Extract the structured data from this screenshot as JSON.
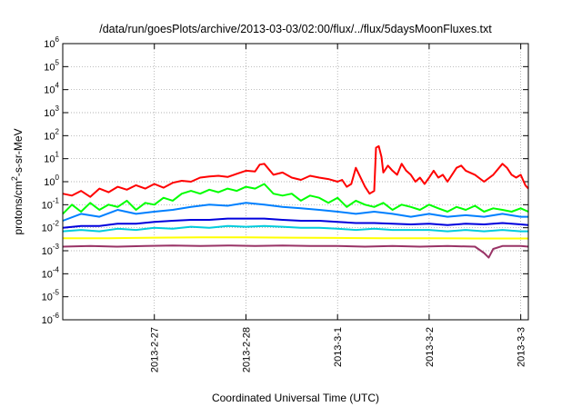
{
  "chart_data": {
    "type": "line",
    "title": "/data/run/goesPlots/archive/2013-03-03/02:00/flux/../flux/5daysMoonFluxes.txt",
    "xlabel": "Coordinated Universal Time (UTC)",
    "ylabel": {
      "base": "protons/cm",
      "sup": "2",
      "rest": "-s-sr-MeV"
    },
    "yscale": "log",
    "ylim": [
      -6,
      6
    ],
    "xlim": [
      "2013-02-26 00:00",
      "2013-03-03 02:00"
    ],
    "xlim_days": [
      0,
      5.083
    ],
    "xticks": [
      {
        "day": 1,
        "label": "2013-2-27"
      },
      {
        "day": 2,
        "label": "2013-2-28"
      },
      {
        "day": 3,
        "label": "2013-3-1"
      },
      {
        "day": 4,
        "label": "2013-3-2"
      },
      {
        "day": 5,
        "label": "2013-3-3"
      }
    ],
    "yticks": [
      {
        "exp": 6,
        "base": "10",
        "sup": "6"
      },
      {
        "exp": 5,
        "base": "10",
        "sup": "5"
      },
      {
        "exp": 4,
        "base": "10",
        "sup": "4"
      },
      {
        "exp": 3,
        "base": "10",
        "sup": "3"
      },
      {
        "exp": 2,
        "base": "10",
        "sup": "2"
      },
      {
        "exp": 1,
        "base": "10",
        "sup": "1"
      },
      {
        "exp": 0,
        "base": "10",
        "sup": "0"
      },
      {
        "exp": -1,
        "base": "10",
        "sup": "-1"
      },
      {
        "exp": -2,
        "base": "10",
        "sup": "-2"
      },
      {
        "exp": -3,
        "base": "10",
        "sup": "-3"
      },
      {
        "exp": -4,
        "base": "10",
        "sup": "-4"
      },
      {
        "exp": -5,
        "base": "10",
        "sup": "-5"
      },
      {
        "exp": -6,
        "base": "10",
        "sup": "-6"
      }
    ],
    "grid": true,
    "series": [
      {
        "color": "#ff0000",
        "x": [
          0,
          0.1,
          0.2,
          0.3,
          0.4,
          0.5,
          0.6,
          0.7,
          0.8,
          0.9,
          1.0,
          1.1,
          1.2,
          1.3,
          1.4,
          1.5,
          1.6,
          1.7,
          1.8,
          1.9,
          2.0,
          2.1,
          2.15,
          2.2,
          2.3,
          2.4,
          2.5,
          2.6,
          2.7,
          2.8,
          2.9,
          3.0,
          3.05,
          3.1,
          3.15,
          3.2,
          3.3,
          3.35,
          3.4,
          3.42,
          3.45,
          3.48,
          3.5,
          3.55,
          3.6,
          3.65,
          3.7,
          3.75,
          3.8,
          3.85,
          3.9,
          3.95,
          4.0,
          4.05,
          4.1,
          4.15,
          4.2,
          4.3,
          4.35,
          4.4,
          4.5,
          4.6,
          4.7,
          4.8,
          4.85,
          4.9,
          4.95,
          5.0,
          5.05,
          5.083
        ],
        "y": [
          0.3,
          0.25,
          0.4,
          0.22,
          0.5,
          0.35,
          0.6,
          0.45,
          0.7,
          0.5,
          0.8,
          0.55,
          0.9,
          1.1,
          1.0,
          1.5,
          1.7,
          1.8,
          1.6,
          2.2,
          3.0,
          2.8,
          5.5,
          6.0,
          2.0,
          2.5,
          1.5,
          1.2,
          1.8,
          1.5,
          1.3,
          1.0,
          1.2,
          0.6,
          0.8,
          4.0,
          0.6,
          0.3,
          0.4,
          30,
          35,
          12,
          2.5,
          5.0,
          3.0,
          2.0,
          6.0,
          3.0,
          2.0,
          1.0,
          1.5,
          0.8,
          1.5,
          3.0,
          1.5,
          2.0,
          1.0,
          4.0,
          5.0,
          3.0,
          2.0,
          1.0,
          2.0,
          6.0,
          4.0,
          2.0,
          1.5,
          2.0,
          0.7,
          0.5
        ]
      },
      {
        "color": "#00ff00",
        "x": [
          0,
          0.1,
          0.2,
          0.3,
          0.4,
          0.5,
          0.6,
          0.7,
          0.8,
          0.9,
          1.0,
          1.1,
          1.2,
          1.3,
          1.4,
          1.5,
          1.6,
          1.7,
          1.8,
          1.9,
          2.0,
          2.1,
          2.2,
          2.3,
          2.4,
          2.5,
          2.6,
          2.7,
          2.8,
          2.9,
          3.0,
          3.1,
          3.2,
          3.3,
          3.4,
          3.5,
          3.6,
          3.7,
          3.8,
          3.9,
          4.0,
          4.1,
          4.2,
          4.3,
          4.4,
          4.5,
          4.6,
          4.7,
          4.8,
          4.9,
          5.0,
          5.083
        ],
        "y": [
          0.04,
          0.1,
          0.05,
          0.12,
          0.06,
          0.1,
          0.08,
          0.15,
          0.06,
          0.12,
          0.1,
          0.2,
          0.15,
          0.3,
          0.4,
          0.3,
          0.45,
          0.35,
          0.5,
          0.4,
          0.6,
          0.5,
          0.8,
          0.3,
          0.25,
          0.3,
          0.15,
          0.25,
          0.2,
          0.12,
          0.2,
          0.08,
          0.15,
          0.1,
          0.08,
          0.12,
          0.06,
          0.1,
          0.08,
          0.06,
          0.1,
          0.07,
          0.05,
          0.08,
          0.06,
          0.09,
          0.05,
          0.07,
          0.06,
          0.05,
          0.07,
          0.05
        ]
      },
      {
        "color": "#0080ff",
        "x": [
          0,
          0.2,
          0.4,
          0.6,
          0.8,
          1.0,
          1.2,
          1.4,
          1.6,
          1.8,
          2.0,
          2.2,
          2.4,
          2.6,
          2.8,
          3.0,
          3.2,
          3.4,
          3.6,
          3.8,
          4.0,
          4.2,
          4.4,
          4.6,
          4.8,
          5.0,
          5.083
        ],
        "y": [
          0.02,
          0.04,
          0.03,
          0.06,
          0.04,
          0.05,
          0.06,
          0.08,
          0.1,
          0.09,
          0.12,
          0.1,
          0.08,
          0.07,
          0.06,
          0.05,
          0.04,
          0.05,
          0.04,
          0.03,
          0.04,
          0.03,
          0.035,
          0.03,
          0.04,
          0.03,
          0.03
        ]
      },
      {
        "color": "#0000dd",
        "x": [
          0,
          0.2,
          0.4,
          0.6,
          0.8,
          1.0,
          1.2,
          1.4,
          1.6,
          1.8,
          2.0,
          2.2,
          2.4,
          2.6,
          2.8,
          3.0,
          3.2,
          3.4,
          3.6,
          3.8,
          4.0,
          4.2,
          4.4,
          4.6,
          4.8,
          5.0,
          5.083
        ],
        "y": [
          0.01,
          0.012,
          0.012,
          0.015,
          0.015,
          0.018,
          0.02,
          0.022,
          0.022,
          0.025,
          0.025,
          0.025,
          0.022,
          0.02,
          0.02,
          0.018,
          0.016,
          0.016,
          0.015,
          0.014,
          0.015,
          0.013,
          0.015,
          0.014,
          0.016,
          0.014,
          0.013
        ]
      },
      {
        "color": "#00ccdd",
        "x": [
          0,
          0.2,
          0.4,
          0.6,
          0.8,
          1.0,
          1.2,
          1.4,
          1.6,
          1.8,
          2.0,
          2.2,
          2.4,
          2.6,
          2.8,
          3.0,
          3.2,
          3.4,
          3.6,
          3.8,
          4.0,
          4.2,
          4.4,
          4.6,
          4.8,
          5.0,
          5.083
        ],
        "y": [
          0.007,
          0.008,
          0.007,
          0.009,
          0.008,
          0.01,
          0.009,
          0.011,
          0.01,
          0.012,
          0.011,
          0.012,
          0.011,
          0.01,
          0.01,
          0.009,
          0.008,
          0.009,
          0.008,
          0.008,
          0.008,
          0.007,
          0.008,
          0.007,
          0.008,
          0.007,
          0.007
        ]
      },
      {
        "color": "#ffff00",
        "x": [
          0,
          0.5,
          1.0,
          1.5,
          2.0,
          2.5,
          3.0,
          3.5,
          4.0,
          4.5,
          5.0,
          5.083
        ],
        "y": [
          0.0035,
          0.0035,
          0.0037,
          0.0038,
          0.0038,
          0.0037,
          0.0036,
          0.0035,
          0.0035,
          0.0034,
          0.0034,
          0.0034
        ]
      },
      {
        "color": "#993366",
        "x": [
          0,
          0.3,
          0.6,
          0.9,
          1.2,
          1.5,
          1.8,
          2.1,
          2.4,
          2.7,
          3.0,
          3.3,
          3.6,
          3.9,
          4.2,
          4.5,
          4.6,
          4.65,
          4.7,
          4.8,
          5.0,
          5.083
        ],
        "y": [
          0.0015,
          0.0016,
          0.0015,
          0.0016,
          0.0017,
          0.0016,
          0.0017,
          0.0016,
          0.0017,
          0.0016,
          0.0016,
          0.0015,
          0.0016,
          0.0015,
          0.0016,
          0.0015,
          0.0008,
          0.0005,
          0.0012,
          0.0016,
          0.0016,
          0.0015
        ]
      }
    ]
  }
}
